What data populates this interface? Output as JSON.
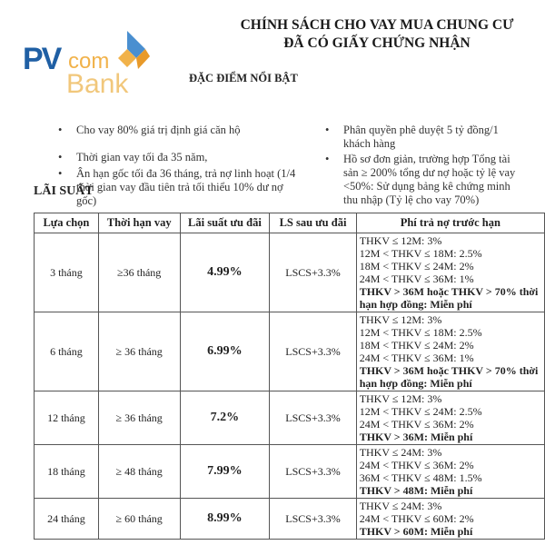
{
  "title": [
    "CHÍNH SÁCH CHO VAY MUA CHUNG CƯ",
    "ĐÃ CÓ GIẤY CHỨNG NHẬN"
  ],
  "logo": {
    "text1": "PV",
    "text2": "com",
    "text3": "Bank",
    "colors": {
      "blue": "#1f5fa4",
      "orange": "#f1b24a"
    }
  },
  "features_heading": "ĐẶC ĐIỂM NỔI BẬT",
  "left_bullets": [
    "Cho vay 80% giá trị định giá căn hộ",
    "Thời gian vay tối đa 35 năm,",
    "Ân hạn gốc tối đa 36 tháng, trả nợ linh hoạt (1/4 thời gian vay đầu tiên trả tối thiểu 10% dư nợ gốc)"
  ],
  "right_bullets": [
    "Phân quyền phê duyệt 5 tỷ đồng/1 khách hàng",
    "Hồ sơ đơn giản, trường hợp Tổng tài sản ≥ 200% tổng dư nợ hoặc tỷ lệ vay <50%: Sử dụng bảng kê chứng minh thu nhập (Tỷ lệ cho vay 70%)"
  ],
  "rate_heading": "LÃI SUẤT",
  "table": {
    "headers": [
      "Lựa chọn",
      "Thời hạn vay",
      "Lãi suất ưu đãi",
      "LS sau ưu đãi",
      "Phí trả nợ trước hạn"
    ],
    "rows": [
      {
        "option": "3 tháng",
        "term": "≥36 tháng",
        "rate": "4.99%",
        "after": "LSCS+3.3%",
        "fees": [
          "THKV ≤ 12M: 3%",
          "12M < THKV ≤ 18M: 2.5%",
          "18M < THKV ≤ 24M: 2%",
          "24M < THKV ≤ 36M: 1%"
        ],
        "free": "THKV > 36M hoặc THKV > 70% thời hạn hợp đồng: Miễn phí"
      },
      {
        "option": "6 tháng",
        "term": "≥ 36 tháng",
        "rate": "6.99%",
        "after": "LSCS+3.3%",
        "fees": [
          "THKV ≤ 12M: 3%",
          "12M < THKV ≤ 18M: 2.5%",
          "18M < THKV ≤ 24M: 2%",
          "24M < THKV ≤ 36M: 1%"
        ],
        "free": "THKV > 36M hoặc THKV > 70% thời hạn hợp đồng: Miễn phí"
      },
      {
        "option": "12 tháng",
        "term": "≥ 36 tháng",
        "rate": "7.2%",
        "after": "LSCS+3.3%",
        "fees": [
          "THKV ≤ 12M: 3%",
          "12M < THKV ≤ 24M: 2.5%",
          "24M < THKV ≤ 36M: 2%"
        ],
        "free": "THKV > 36M: Miễn phí"
      },
      {
        "option": "18 tháng",
        "term": "≥ 48 tháng",
        "rate": "7.99%",
        "after": "LSCS+3.3%",
        "fees": [
          "THKV ≤ 24M: 3%",
          "24M < THKV ≤ 36M: 2%",
          "36M < THKV ≤ 48M: 1.5%"
        ],
        "free": "THKV > 48M: Miễn phí"
      },
      {
        "option": "24 tháng",
        "term": "≥ 60 tháng",
        "rate": "8.99%",
        "after": "LSCS+3.3%",
        "fees": [
          "THKV ≤ 24M: 3%",
          "24M < THKV ≤ 60M: 2%"
        ],
        "free": "THKV > 60M: Miễn phí"
      }
    ]
  }
}
